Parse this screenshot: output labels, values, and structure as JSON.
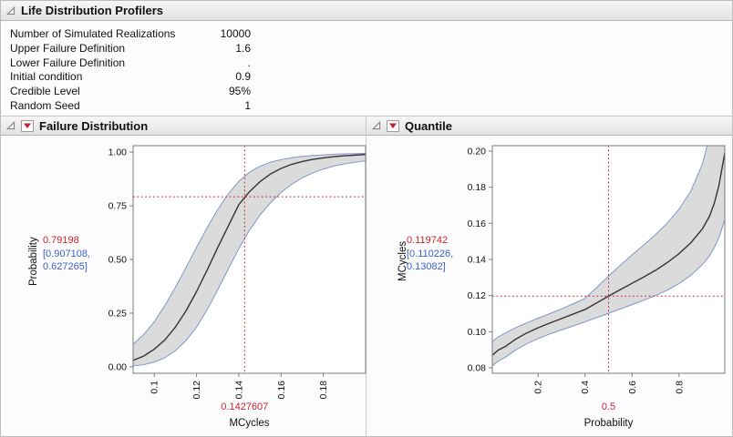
{
  "colors": {
    "accent_red": "#cc2230",
    "accent_blue": "#3b62c4",
    "band_fill": "#dbdbdb",
    "band_edge": "#8096cc",
    "line": "#333333",
    "crosshair": "#c42333"
  },
  "root": {
    "title": "Life Distribution Profilers"
  },
  "icons": {
    "disclosure": "open-disclosure-triangle",
    "red_menu": "red-triangle-menu"
  },
  "summary": {
    "rows": [
      {
        "label": "Number of Simulated Realizations",
        "value": "10000"
      },
      {
        "label": "Upper Failure Definition",
        "value": "1.6"
      },
      {
        "label": "Lower Failure Definition",
        "value": "."
      },
      {
        "label": "Initial condition",
        "value": "0.9"
      },
      {
        "label": "Credible Level",
        "value": "95%"
      },
      {
        "label": "Random Seed",
        "value": "1"
      }
    ]
  },
  "chart_data": [
    {
      "type": "line",
      "title": "Failure Distribution",
      "xlabel": "MCycles",
      "ylabel": "Probability",
      "xlim": [
        0.09,
        0.2
      ],
      "ylim": [
        -0.03,
        1.03
      ],
      "grid": false,
      "legend": false,
      "xticks": [
        0.1,
        0.12,
        0.14,
        0.16,
        0.18
      ],
      "xtick_labels": [
        "0.1",
        "0.12",
        "0.14",
        "0.16",
        "0.18"
      ],
      "yticks": [
        0,
        0.25,
        0.5,
        0.75,
        1
      ],
      "ytick_labels": [
        "0.00",
        "0.25",
        "0.50",
        "0.75",
        "1.00"
      ],
      "x": [
        0.09,
        0.095,
        0.1,
        0.105,
        0.11,
        0.115,
        0.12,
        0.125,
        0.13,
        0.135,
        0.14,
        0.145,
        0.15,
        0.155,
        0.16,
        0.165,
        0.17,
        0.175,
        0.18,
        0.185,
        0.19,
        0.195,
        0.2
      ],
      "series": [
        {
          "name": "Estimate",
          "role": "estimate",
          "values": [
            0.03,
            0.05,
            0.082,
            0.125,
            0.185,
            0.26,
            0.35,
            0.45,
            0.555,
            0.655,
            0.755,
            0.815,
            0.862,
            0.898,
            0.924,
            0.943,
            0.956,
            0.966,
            0.973,
            0.979,
            0.983,
            0.986,
            0.989
          ]
        },
        {
          "name": "Upper 95% credible limit",
          "role": "upper",
          "values": [
            0.105,
            0.15,
            0.21,
            0.285,
            0.37,
            0.462,
            0.556,
            0.648,
            0.732,
            0.805,
            0.864,
            0.906,
            0.934,
            0.953,
            0.965,
            0.974,
            0.98,
            0.984,
            0.987,
            0.99,
            0.992,
            0.993,
            0.994
          ]
        },
        {
          "name": "Lower 95% credible limit",
          "role": "lower",
          "values": [
            0.004,
            0.01,
            0.022,
            0.042,
            0.075,
            0.122,
            0.185,
            0.265,
            0.358,
            0.455,
            0.55,
            0.635,
            0.706,
            0.764,
            0.812,
            0.85,
            0.88,
            0.903,
            0.921,
            0.935,
            0.945,
            0.953,
            0.959
          ]
        }
      ],
      "band": {
        "between": [
          "upper",
          "lower"
        ]
      },
      "crosshair": {
        "x": 0.1427607,
        "y": 0.79198,
        "x_label": "0.1427607"
      },
      "readout": {
        "value_label": "0.79198",
        "ci_line1": "[0.907108,",
        "ci_line2": "0.627265]"
      }
    },
    {
      "type": "line",
      "title": "Quantile",
      "xlabel": "Probability",
      "ylabel": "MCycles",
      "xlim": [
        0.005,
        0.995
      ],
      "ylim": [
        0.077,
        0.203
      ],
      "grid": false,
      "legend": false,
      "xticks": [
        0.2,
        0.4,
        0.6,
        0.8
      ],
      "xtick_labels": [
        "0.2",
        "0.4",
        "0.6",
        "0.8"
      ],
      "yticks": [
        0.08,
        0.1,
        0.12,
        0.14,
        0.16,
        0.18,
        0.2
      ],
      "ytick_labels": [
        "0.08",
        "0.10",
        "0.12",
        "0.14",
        "0.16",
        "0.18",
        "0.20"
      ],
      "x": [
        0.005,
        0.03,
        0.06,
        0.1,
        0.15,
        0.2,
        0.25,
        0.3,
        0.35,
        0.4,
        0.45,
        0.5,
        0.55,
        0.6,
        0.65,
        0.7,
        0.75,
        0.8,
        0.85,
        0.9,
        0.93,
        0.95,
        0.97,
        0.995
      ],
      "series": [
        {
          "name": "Estimate",
          "role": "estimate",
          "values": [
            0.087,
            0.0898,
            0.0918,
            0.0955,
            0.0992,
            0.1022,
            0.1048,
            0.1073,
            0.1098,
            0.1123,
            0.116,
            0.1197,
            0.1233,
            0.1268,
            0.1303,
            0.134,
            0.1383,
            0.1432,
            0.1492,
            0.157,
            0.164,
            0.171,
            0.181,
            0.199
          ]
        },
        {
          "name": "Upper 95% credible limit",
          "role": "upper",
          "values": [
            0.0945,
            0.0972,
            0.0992,
            0.102,
            0.1048,
            0.1075,
            0.11,
            0.1127,
            0.1155,
            0.1185,
            0.1245,
            0.1308,
            0.1368,
            0.1425,
            0.148,
            0.1538,
            0.1602,
            0.1678,
            0.1778,
            0.193,
            0.208,
            0.22,
            0.235,
            0.26
          ]
        },
        {
          "name": "Lower 95% credible limit",
          "role": "lower",
          "values": [
            0.081,
            0.0838,
            0.0858,
            0.0895,
            0.0932,
            0.0962,
            0.0988,
            0.101,
            0.1032,
            0.1055,
            0.1078,
            0.1102,
            0.1126,
            0.115,
            0.1174,
            0.12,
            0.123,
            0.1266,
            0.1312,
            0.1372,
            0.142,
            0.1465,
            0.152,
            0.162
          ]
        }
      ],
      "band": {
        "between": [
          "upper",
          "lower"
        ]
      },
      "crosshair": {
        "x": 0.5,
        "y": 0.119742,
        "x_label": "0.5"
      },
      "readout": {
        "value_label": "0.119742",
        "ci_line1": "[0.110226,",
        "ci_line2": "0.13082]"
      }
    }
  ]
}
